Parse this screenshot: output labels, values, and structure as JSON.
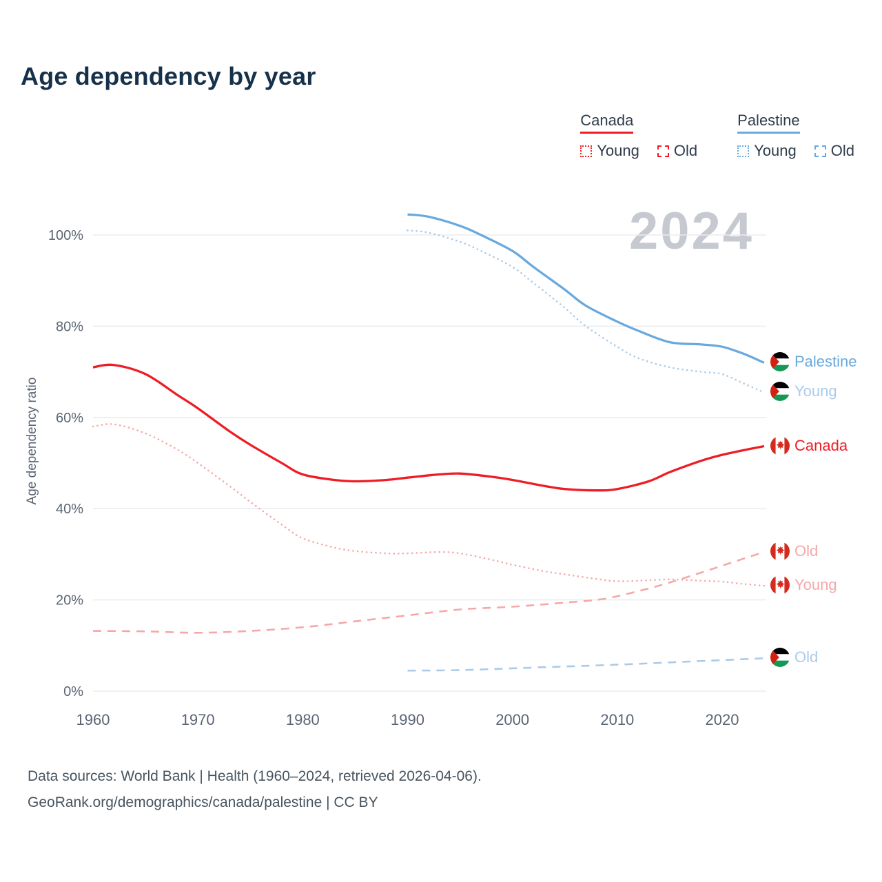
{
  "title": "Age dependency by year",
  "watermark": "2024",
  "legend": {
    "groups": [
      {
        "country": "Canada",
        "color": "#ee1d25",
        "items": [
          {
            "label": "Young",
            "style": "dotted"
          },
          {
            "label": "Old",
            "style": "dashed"
          }
        ]
      },
      {
        "country": "Palestine",
        "color": "#69a9de",
        "items": [
          {
            "label": "Young",
            "style": "dotted"
          },
          {
            "label": "Old",
            "style": "dashed"
          }
        ]
      }
    ]
  },
  "footer": {
    "line1": "Data sources: World Bank | Health (1960–2024, retrieved 2026-04-06).",
    "line2": "GeoRank.org/demographics/canada/palestine | CC BY"
  },
  "chart_data": {
    "type": "line",
    "title": "Age dependency by year",
    "xlabel": "",
    "ylabel": "Age dependency ratio",
    "xlim": [
      1960,
      2024
    ],
    "ylim": [
      0,
      105
    ],
    "grid": true,
    "legend_position": "top-right",
    "yticks": [
      {
        "value": 0,
        "label": "0%"
      },
      {
        "value": 20,
        "label": "20%"
      },
      {
        "value": 40,
        "label": "40%"
      },
      {
        "value": 60,
        "label": "60%"
      },
      {
        "value": 80,
        "label": "80%"
      },
      {
        "value": 100,
        "label": "100%"
      }
    ],
    "xticks": [
      1960,
      1970,
      1980,
      1990,
      2000,
      2010,
      2020
    ],
    "series": [
      {
        "name": "Palestine total",
        "label": "Palestine",
        "flag": "palestine",
        "color": "#69a9de",
        "style": "solid",
        "points": [
          [
            1990,
            104.5
          ],
          [
            1992,
            104
          ],
          [
            1995,
            102
          ],
          [
            1997,
            100
          ],
          [
            2000,
            96.5
          ],
          [
            2002,
            93
          ],
          [
            2005,
            88
          ],
          [
            2007,
            84.5
          ],
          [
            2010,
            81
          ],
          [
            2012,
            79
          ],
          [
            2015,
            76.5
          ],
          [
            2018,
            76
          ],
          [
            2020,
            75.5
          ],
          [
            2022,
            74
          ],
          [
            2024,
            72
          ]
        ]
      },
      {
        "name": "Palestine young",
        "label": "Young",
        "flag": "palestine",
        "color": "#a9cbe9",
        "style": "dotted",
        "points": [
          [
            1990,
            101
          ],
          [
            1992,
            100.5
          ],
          [
            1995,
            98.5
          ],
          [
            1997,
            96.5
          ],
          [
            2000,
            93
          ],
          [
            2002,
            89.5
          ],
          [
            2005,
            84
          ],
          [
            2007,
            80
          ],
          [
            2010,
            75.5
          ],
          [
            2012,
            73
          ],
          [
            2015,
            71
          ],
          [
            2018,
            70
          ],
          [
            2020,
            69.5
          ],
          [
            2022,
            67.5
          ],
          [
            2024,
            65.5
          ]
        ]
      },
      {
        "name": "Canada total",
        "label": "Canada",
        "flag": "canada",
        "color": "#ee1d25",
        "style": "solid",
        "points": [
          [
            1960,
            71
          ],
          [
            1962,
            71.5
          ],
          [
            1965,
            69.5
          ],
          [
            1968,
            65
          ],
          [
            1970,
            62
          ],
          [
            1973,
            57
          ],
          [
            1975,
            54
          ],
          [
            1978,
            50
          ],
          [
            1980,
            47.5
          ],
          [
            1983,
            46.3
          ],
          [
            1985,
            46
          ],
          [
            1988,
            46.3
          ],
          [
            1990,
            46.8
          ],
          [
            1993,
            47.5
          ],
          [
            1995,
            47.7
          ],
          [
            1998,
            47
          ],
          [
            2000,
            46.3
          ],
          [
            2003,
            45
          ],
          [
            2005,
            44.3
          ],
          [
            2008,
            44
          ],
          [
            2010,
            44.3
          ],
          [
            2013,
            46
          ],
          [
            2015,
            48
          ],
          [
            2018,
            50.5
          ],
          [
            2020,
            51.8
          ],
          [
            2022,
            52.8
          ],
          [
            2024,
            53.7
          ]
        ]
      },
      {
        "name": "Canada old",
        "label": "Old",
        "flag": "canada",
        "color": "#f5a8a8",
        "style": "dashed",
        "points": [
          [
            1960,
            13.2
          ],
          [
            1965,
            13.1
          ],
          [
            1970,
            12.8
          ],
          [
            1975,
            13.2
          ],
          [
            1980,
            14
          ],
          [
            1985,
            15.3
          ],
          [
            1990,
            16.6
          ],
          [
            1995,
            17.9
          ],
          [
            2000,
            18.5
          ],
          [
            2005,
            19.4
          ],
          [
            2008,
            20
          ],
          [
            2010,
            20.8
          ],
          [
            2013,
            22.5
          ],
          [
            2015,
            23.8
          ],
          [
            2018,
            26
          ],
          [
            2020,
            27.5
          ],
          [
            2022,
            29
          ],
          [
            2024,
            30.5
          ]
        ]
      },
      {
        "name": "Canada young",
        "label": "Young",
        "flag": "canada",
        "color": "#f5a8a8",
        "style": "dotted",
        "points": [
          [
            1960,
            58
          ],
          [
            1962,
            58.5
          ],
          [
            1965,
            56.5
          ],
          [
            1968,
            53
          ],
          [
            1970,
            50
          ],
          [
            1973,
            45
          ],
          [
            1975,
            41.5
          ],
          [
            1978,
            36.5
          ],
          [
            1980,
            33.5
          ],
          [
            1983,
            31.5
          ],
          [
            1985,
            30.7
          ],
          [
            1988,
            30.2
          ],
          [
            1990,
            30.2
          ],
          [
            1993,
            30.5
          ],
          [
            1995,
            30.2
          ],
          [
            1998,
            28.8
          ],
          [
            2000,
            27.7
          ],
          [
            2003,
            26.3
          ],
          [
            2005,
            25.6
          ],
          [
            2008,
            24.6
          ],
          [
            2010,
            24.1
          ],
          [
            2013,
            24.3
          ],
          [
            2015,
            24.5
          ],
          [
            2018,
            24.2
          ],
          [
            2020,
            24
          ],
          [
            2022,
            23.5
          ],
          [
            2024,
            23.1
          ]
        ]
      },
      {
        "name": "Palestine old",
        "label": "Old",
        "flag": "palestine",
        "color": "#a9cbe9",
        "style": "dashed",
        "points": [
          [
            1990,
            4.5
          ],
          [
            1995,
            4.6
          ],
          [
            2000,
            5
          ],
          [
            2005,
            5.4
          ],
          [
            2010,
            5.8
          ],
          [
            2015,
            6.3
          ],
          [
            2020,
            6.8
          ],
          [
            2024,
            7.2
          ]
        ]
      }
    ]
  }
}
